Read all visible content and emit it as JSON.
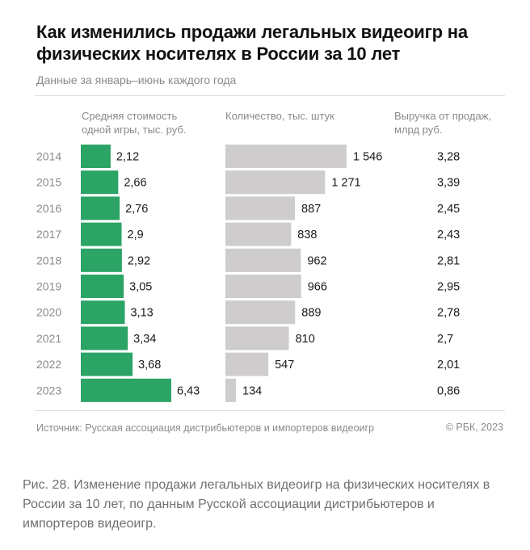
{
  "header": {
    "title": "Как изменились продажи легальных видеоигр на физических носителях в России за 10 лет",
    "subtitle": "Данные за январь–июнь каждого года"
  },
  "chart_data": {
    "type": "bar",
    "categories": [
      "2014",
      "2015",
      "2016",
      "2017",
      "2018",
      "2019",
      "2020",
      "2021",
      "2022",
      "2023"
    ],
    "series": [
      {
        "name": "Средняя стоимость одной игры, тыс. руб.",
        "values": [
          2.12,
          2.66,
          2.76,
          2.9,
          2.92,
          3.05,
          3.13,
          3.34,
          3.68,
          6.43
        ],
        "labels": [
          "2,12",
          "2,66",
          "2,76",
          "2,9",
          "2,92",
          "3,05",
          "3,13",
          "3,34",
          "3,68",
          "6,43"
        ],
        "color": "#2ba466"
      },
      {
        "name": "Количество, тыс. штук",
        "values": [
          1546,
          1271,
          887,
          838,
          962,
          966,
          889,
          810,
          547,
          134
        ],
        "labels": [
          "1 546",
          "1 271",
          "887",
          "838",
          "962",
          "966",
          "889",
          "810",
          "547",
          "134"
        ],
        "color": "#cfcccd"
      },
      {
        "name": "Выручка от продаж, млрд руб.",
        "values": [
          3.28,
          3.39,
          2.45,
          2.43,
          2.81,
          2.95,
          2.78,
          2.7,
          2.01,
          0.86
        ],
        "labels": [
          "3,28",
          "3,39",
          "2,45",
          "2,43",
          "2,81",
          "2,95",
          "2,78",
          "2,7",
          "2,01",
          "0,86"
        ]
      }
    ],
    "column_headers": [
      "Средняя стоимость\nодной игры, тыс. руб.",
      "Количество, тыс. штук",
      "Выручка от продаж,\nмлрд руб."
    ],
    "title": "Как изменились продажи легальных видеоигр на физических носителях в России за 10 лет"
  },
  "footer": {
    "source": "Источник: Русская ассоциация дистрибьютеров и импортеров видеоигр",
    "copyright": "© РБК, 2023"
  },
  "caption": "Рис. 28. Изменение продажи легальных видеоигр на физических носителях в России за 10 лет, по данным Русской ассоциации дистрибьютеров и импортеров видеоигр."
}
